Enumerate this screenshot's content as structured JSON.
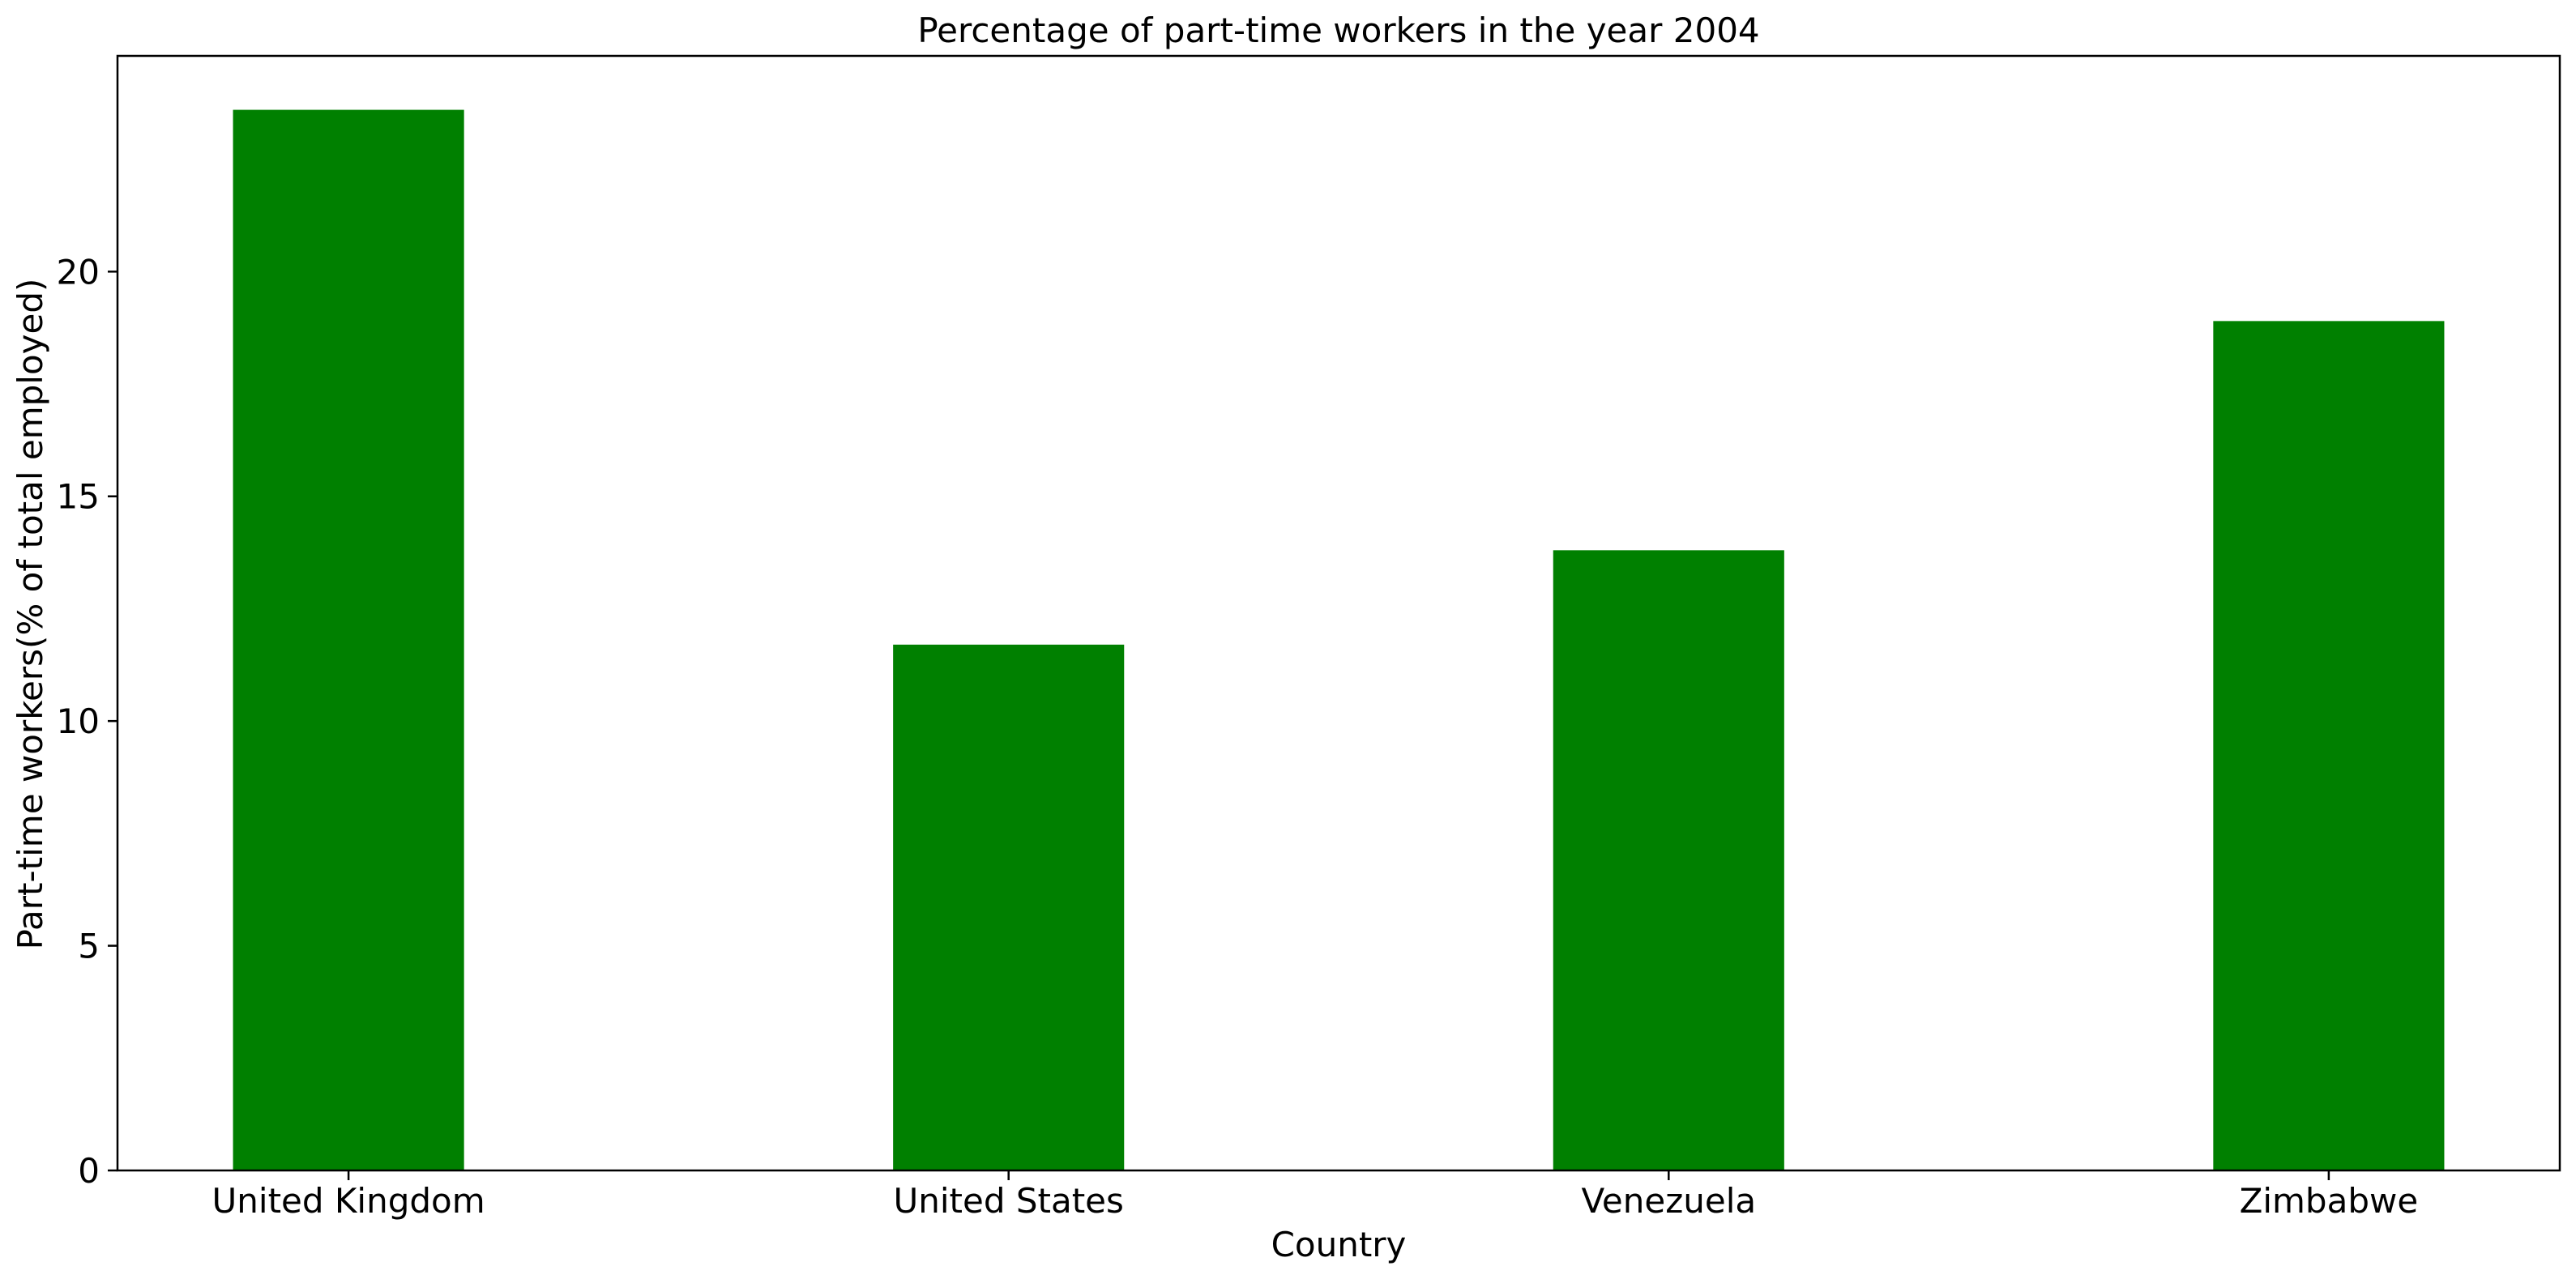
{
  "chart_data": {
    "type": "bar",
    "title": "Percentage of part-time workers in the year 2004",
    "xlabel": "Country",
    "ylabel": "Part-time workers(% of total employed)",
    "categories": [
      "United Kingdom",
      "United States",
      "Venezuela",
      "Zimbabwe"
    ],
    "values": [
      23.6,
      11.7,
      13.8,
      18.9
    ],
    "ylim": [
      0,
      24.8
    ],
    "yticks": [
      0,
      5,
      10,
      15,
      20
    ],
    "bar_color": "#008000",
    "grid": false,
    "legend": "none"
  }
}
